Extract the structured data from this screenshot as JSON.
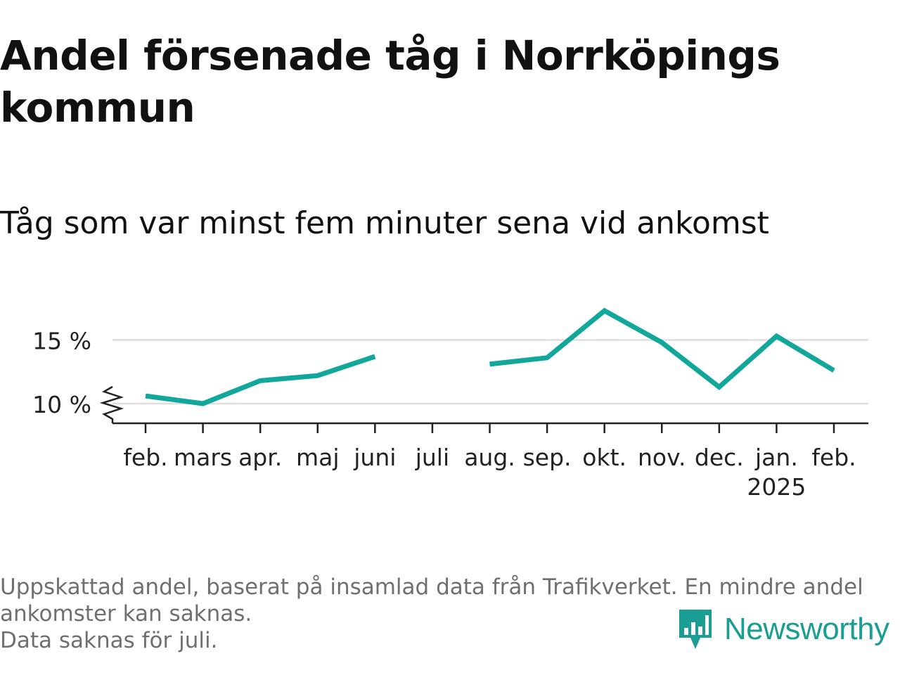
{
  "title": "Andel försenade tåg i Norrköpings kommun",
  "subtitle": "Tåg som var minst fem minuter sena vid ankomst",
  "notes": [
    "Uppskattad andel, baserat på insamlad data från Trafikverket. En mindre andel ankomster kan saknas.",
    "Data saknas för juli."
  ],
  "brand": {
    "name": "Newsworthy",
    "icon": "newsworthy-logo-icon"
  },
  "colors": {
    "line": "#12a79b",
    "grid": "#dddddd",
    "axis": "#222222",
    "text": "#222222",
    "brand": "#1a9e93"
  },
  "chart_data": {
    "type": "line",
    "categories": [
      "feb.",
      "mars",
      "apr.",
      "maj",
      "juni",
      "juli",
      "aug.",
      "sep.",
      "okt.",
      "nov.",
      "dec.",
      "jan.",
      "feb."
    ],
    "year_labels": {
      "11": "2025"
    },
    "series": [
      {
        "values": [
          10.6,
          10.0,
          11.8,
          12.2,
          13.7,
          null,
          13.1,
          13.6,
          17.3,
          14.8,
          11.3,
          15.3,
          12.6
        ]
      }
    ],
    "yticks": [
      10,
      15
    ],
    "ytick_labels": [
      "10 %",
      "15 %"
    ],
    "ylim": [
      8.5,
      17.8
    ],
    "axis_break": true,
    "grid": true,
    "legend": "none",
    "xlabel": "",
    "ylabel": ""
  }
}
